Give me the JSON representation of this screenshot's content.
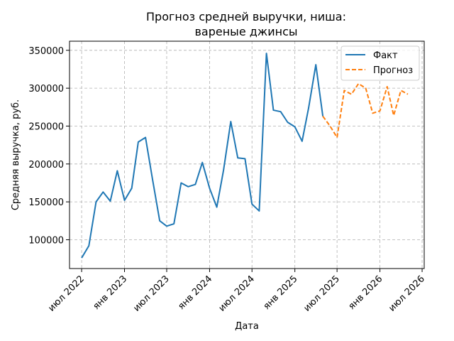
{
  "chart_data": {
    "type": "line",
    "title_lines": [
      "Прогноз средней выручки, ниша:",
      "вареные джинсы"
    ],
    "xlabel": "Дата",
    "ylabel": "Средняя выручка, руб.",
    "x_ticks": [
      {
        "date": "2022-07-01",
        "label": "июл 2022"
      },
      {
        "date": "2023-01-01",
        "label": "янв 2023"
      },
      {
        "date": "2023-07-01",
        "label": "июл 2023"
      },
      {
        "date": "2024-01-01",
        "label": "янв 2024"
      },
      {
        "date": "2024-07-01",
        "label": "июл 2024"
      },
      {
        "date": "2025-01-01",
        "label": "янв 2025"
      },
      {
        "date": "2025-07-01",
        "label": "июл 2025"
      },
      {
        "date": "2026-01-01",
        "label": "янв 2026"
      },
      {
        "date": "2026-07-01",
        "label": "июл 2026"
      }
    ],
    "y_ticks": [
      100000,
      150000,
      200000,
      250000,
      300000,
      350000
    ],
    "y_tick_labels": [
      "100000",
      "150000",
      "200000",
      "250000",
      "300000",
      "350000"
    ],
    "xlim": [
      "2022-05-10",
      "2026-07-10"
    ],
    "ylim": [
      62000,
      362000
    ],
    "grid": true,
    "legend_position": "top-right",
    "series": [
      {
        "name": "Факт",
        "color": "#1f77b4",
        "style": "solid",
        "points": [
          {
            "x": "2022-07-01",
            "y": 76000
          },
          {
            "x": "2022-08-01",
            "y": 92000
          },
          {
            "x": "2022-09-01",
            "y": 150000
          },
          {
            "x": "2022-10-01",
            "y": 163000
          },
          {
            "x": "2022-11-01",
            "y": 151000
          },
          {
            "x": "2022-12-01",
            "y": 191000
          },
          {
            "x": "2023-01-01",
            "y": 152000
          },
          {
            "x": "2023-02-01",
            "y": 168000
          },
          {
            "x": "2023-03-01",
            "y": 229000
          },
          {
            "x": "2023-04-01",
            "y": 235000
          },
          {
            "x": "2023-05-01",
            "y": 180000
          },
          {
            "x": "2023-06-01",
            "y": 125000
          },
          {
            "x": "2023-07-01",
            "y": 118000
          },
          {
            "x": "2023-08-01",
            "y": 121000
          },
          {
            "x": "2023-09-01",
            "y": 175000
          },
          {
            "x": "2023-10-01",
            "y": 170000
          },
          {
            "x": "2023-11-01",
            "y": 173000
          },
          {
            "x": "2023-12-01",
            "y": 202000
          },
          {
            "x": "2024-01-01",
            "y": 168000
          },
          {
            "x": "2024-02-01",
            "y": 143000
          },
          {
            "x": "2024-03-01",
            "y": 192000
          },
          {
            "x": "2024-04-01",
            "y": 256000
          },
          {
            "x": "2024-05-01",
            "y": 208000
          },
          {
            "x": "2024-06-01",
            "y": 207000
          },
          {
            "x": "2024-07-01",
            "y": 147000
          },
          {
            "x": "2024-08-01",
            "y": 138000
          },
          {
            "x": "2024-09-01",
            "y": 346000
          },
          {
            "x": "2024-10-01",
            "y": 271000
          },
          {
            "x": "2024-11-01",
            "y": 269000
          },
          {
            "x": "2024-12-01",
            "y": 255000
          },
          {
            "x": "2025-01-01",
            "y": 249000
          },
          {
            "x": "2025-02-01",
            "y": 230000
          },
          {
            "x": "2025-03-01",
            "y": 274000
          },
          {
            "x": "2025-04-01",
            "y": 331000
          },
          {
            "x": "2025-05-01",
            "y": 263000
          }
        ]
      },
      {
        "name": "Прогноз",
        "color": "#ff7f0e",
        "style": "dashed",
        "points": [
          {
            "x": "2025-05-01",
            "y": 263000
          },
          {
            "x": "2025-06-01",
            "y": 250000
          },
          {
            "x": "2025-07-01",
            "y": 235000
          },
          {
            "x": "2025-08-01",
            "y": 297000
          },
          {
            "x": "2025-09-01",
            "y": 292000
          },
          {
            "x": "2025-10-01",
            "y": 306000
          },
          {
            "x": "2025-11-01",
            "y": 300000
          },
          {
            "x": "2025-12-01",
            "y": 267000
          },
          {
            "x": "2026-01-01",
            "y": 270000
          },
          {
            "x": "2026-02-01",
            "y": 302000
          },
          {
            "x": "2026-03-01",
            "y": 264000
          },
          {
            "x": "2026-04-01",
            "y": 297000
          },
          {
            "x": "2026-05-01",
            "y": 292000
          }
        ]
      }
    ]
  }
}
